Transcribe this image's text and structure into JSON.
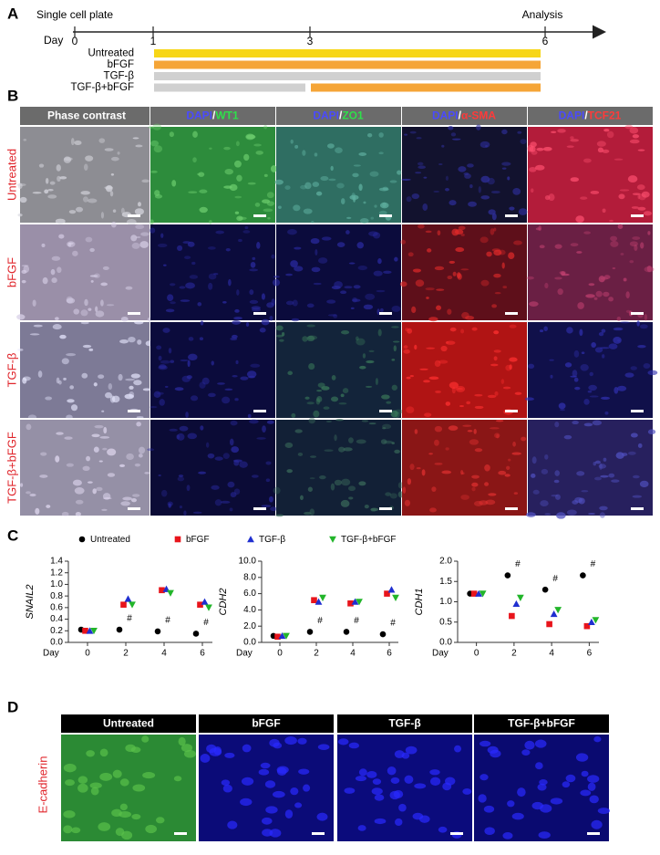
{
  "panels": {
    "a": "A",
    "b": "B",
    "c": "C",
    "d": "D"
  },
  "timeline": {
    "start_label": "Single cell plate",
    "end_label": "Analysis",
    "axis_label": "Day",
    "days": [
      0,
      1,
      3,
      6
    ],
    "treatments": [
      {
        "name": "Untreated",
        "segments": [
          {
            "from": 1,
            "to": 6,
            "color": "#f7d617"
          }
        ]
      },
      {
        "name": "bFGF",
        "segments": [
          {
            "from": 1,
            "to": 6,
            "color": "#f5a537"
          }
        ]
      },
      {
        "name": "TGF-β",
        "segments": [
          {
            "from": 1,
            "to": 6,
            "color": "#d0d0d0"
          }
        ]
      },
      {
        "name": "TGF-β+bFGF",
        "segments": [
          {
            "from": 1,
            "to": 3,
            "color": "#d0d0d0"
          },
          {
            "from": 3,
            "to": 6,
            "color": "#f5a537"
          }
        ]
      }
    ]
  },
  "figure_b": {
    "columns": [
      [
        "Phase contrast"
      ],
      [
        "DAPI",
        "/",
        "WT1"
      ],
      [
        "DAPI",
        "/",
        "ZO1"
      ],
      [
        "DAPI",
        "/",
        "α-SMA"
      ],
      [
        "DAPI",
        "/",
        "TCF21"
      ]
    ],
    "rows": [
      "Untreated",
      "bFGF",
      "TGF-β",
      "TGF-β+bFGF"
    ]
  },
  "figure_c": {
    "legend": [
      {
        "name": "Untreated",
        "color": "#000000",
        "marker": "circle"
      },
      {
        "name": "bFGF",
        "color": "#e8141b",
        "marker": "square"
      },
      {
        "name": "TGF-β",
        "color": "#1f2fd0",
        "marker": "triangle-up"
      },
      {
        "name": "TGF-β+bFGF",
        "color": "#22b52a",
        "marker": "triangle-down"
      }
    ],
    "x_label": "Day",
    "charts": [
      {
        "y_label": "SNAIL2",
        "xlim": [
          -1,
          7
        ],
        "xticks": [
          0,
          2,
          4,
          6
        ],
        "ylim": [
          0,
          1.4
        ],
        "yticks": [
          {
            "value": 0,
            "label": "0.0"
          },
          0.2,
          0.4,
          0.6,
          0.8,
          {
            "value": 1,
            "label": "1.0"
          },
          1.2,
          1.4
        ],
        "series": [
          {
            "values": [
              0.22,
              0.22,
              0.19,
              0.15
            ]
          },
          {
            "values": [
              0.2,
              0.65,
              0.9,
              0.65
            ]
          },
          {
            "values": [
              0.2,
              0.75,
              0.92,
              0.7
            ]
          },
          {
            "values": [
              0.2,
              0.65,
              0.85,
              0.6
            ]
          }
        ],
        "annotations": [
          "#",
          "#",
          "#"
        ]
      },
      {
        "y_label": "CDH2",
        "xlim": [
          -1,
          7
        ],
        "xticks": [
          0,
          2,
          4,
          6
        ],
        "ylim": [
          0,
          10
        ],
        "yticks": [
          {
            "value": 0,
            "label": "0.0"
          },
          {
            "value": 2,
            "label": "2.0"
          },
          {
            "value": 4,
            "label": "4.0"
          },
          {
            "value": 6,
            "label": "6.0"
          },
          {
            "value": 8,
            "label": "8.0"
          },
          {
            "value": 10,
            "label": "10.0"
          }
        ],
        "series": [
          {
            "values": [
              0.8,
              1.3,
              1.3,
              1.0
            ]
          },
          {
            "values": [
              0.7,
              5.2,
              4.8,
              6.0
            ]
          },
          {
            "values": [
              0.8,
              5.0,
              5.0,
              6.5
            ]
          },
          {
            "values": [
              0.8,
              5.5,
              5.0,
              5.5
            ]
          }
        ],
        "annotations": [
          "#",
          "#",
          "#"
        ]
      },
      {
        "y_label": "CDH1",
        "xlim": [
          -1,
          7
        ],
        "xticks": [
          0,
          2,
          4,
          6
        ],
        "ylim": [
          0,
          2
        ],
        "yticks": [
          {
            "value": 0,
            "label": "0.0"
          },
          0.5,
          {
            "value": 1,
            "label": "1.0"
          },
          1.5,
          {
            "value": 2,
            "label": "2.0"
          }
        ],
        "series": [
          {
            "values": [
              1.2,
              1.65,
              1.3,
              1.65
            ]
          },
          {
            "values": [
              1.2,
              0.65,
              0.45,
              0.4
            ]
          },
          {
            "values": [
              1.2,
              0.95,
              0.7,
              0.5
            ]
          },
          {
            "values": [
              1.2,
              1.1,
              0.8,
              0.55
            ]
          }
        ],
        "annotations": [
          "#",
          "#",
          "#"
        ]
      }
    ]
  },
  "figure_d": {
    "columns": [
      "Untreated",
      "bFGF",
      "TGF-β",
      "TGF-β+bFGF"
    ],
    "row": "E-cadherin"
  }
}
